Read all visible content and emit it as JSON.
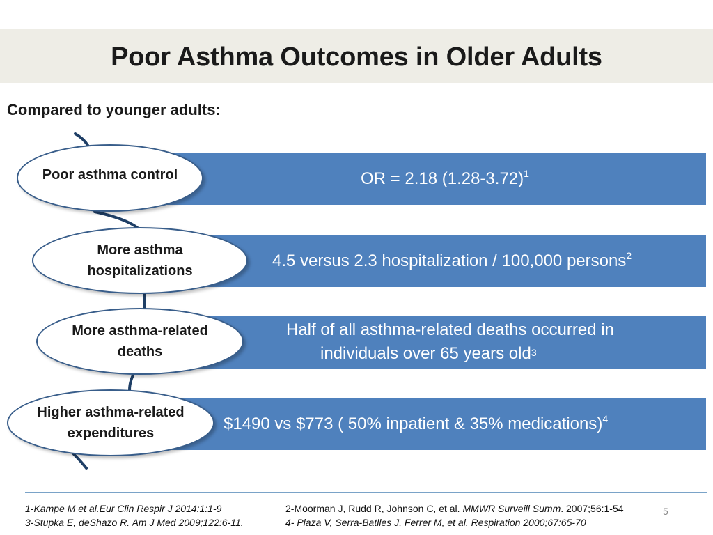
{
  "slide": {
    "title": "Poor Asthma Outcomes in Older Adults",
    "subtitle": "Compared to younger adults:",
    "page_number": "5"
  },
  "rows": [
    {
      "oval_lines": [
        "Poor asthma control"
      ],
      "bar_text": "OR = 2.18 (1.28-3.72)",
      "bar_text_2": "",
      "superscript": "1"
    },
    {
      "oval_lines": [
        "More asthma",
        "hospitalizations"
      ],
      "bar_text": "4.5 versus 2.3 hospitalization / 100,000 persons",
      "bar_text_2": "",
      "superscript": "2"
    },
    {
      "oval_lines": [
        "More asthma-related",
        "deaths"
      ],
      "bar_text": "Half of all asthma-related deaths occurred in",
      "bar_text_2": "individuals over 65 years old",
      "superscript": "3"
    },
    {
      "oval_lines": [
        "Higher asthma-related",
        "expenditures"
      ],
      "bar_text": "$1490 vs $773 ( 50% inpatient & 35% medications)",
      "bar_text_2": "",
      "superscript": "4"
    }
  ],
  "references": {
    "ref1": "1-Kampe M et al.Eur Clin Respir J 2014:1:1-9",
    "ref2_prefix": "2-Moorman J, Rudd R, Johnson C, et al. ",
    "ref2_journal": "MMWR Surveill Summ",
    "ref2_suffix": ". 2007;56:1-54",
    "ref3": "3-Stupka E, deShazo R. Am J Med 2009;122:6-11.",
    "ref4": "4- Plaza V, Serra-Batlles J, Ferrer M, et al. Respiration 2000;67:65-70"
  },
  "colors": {
    "bar": "#4f81bd",
    "oval_border": "#385d8a",
    "title_band": "#eeede6"
  }
}
